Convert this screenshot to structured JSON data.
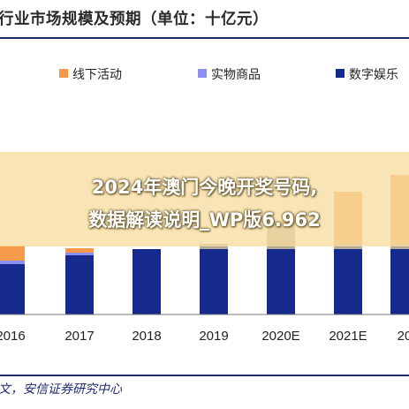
{
  "title": "行业市场规模及预期（单位：十亿元）",
  "source": "文，安信证券研究中心",
  "overlay": {
    "line1": "2024年澳门今晚开奖号码,",
    "line2": "数据解读说明_WP版6.962"
  },
  "colors": {
    "offline": "#f59a4a",
    "physical": "#8b8ff0",
    "digital": "#16298c",
    "upper": "#b5a998",
    "banner": "#f6dda0"
  },
  "chart_data": {
    "type": "bar",
    "stacked": true,
    "title": "行业市场规模及预期（单位：十亿元）",
    "categories": [
      "2016",
      "2017",
      "2018",
      "2019",
      "2020E",
      "2021E",
      "20"
    ],
    "series": [
      {
        "name": "数字娱乐",
        "color": "#16298c",
        "values": [
          57,
          67,
          74,
          74,
          74,
          74,
          74
        ]
      },
      {
        "name": "实物商品",
        "color": "#8b8ff0",
        "values": [
          4,
          3,
          0,
          0,
          0,
          0,
          0
        ]
      },
      {
        "name": "线下活动",
        "color": "#f59a4a",
        "values": [
          17,
          5,
          0,
          0,
          0,
          0,
          0
        ]
      },
      {
        "name": "",
        "color": "#b5a998",
        "values": [
          0,
          0,
          0,
          6,
          32,
          6,
          6
        ]
      },
      {
        "name": "",
        "color": "#f59a4a",
        "values": [
          0,
          0,
          0,
          0,
          0,
          59,
          78
        ]
      }
    ],
    "legend": [
      "线下活动",
      "实物商品",
      "数字娱乐"
    ],
    "legend_position": "top",
    "ylim": [
      0,
      220
    ],
    "grid": false
  }
}
